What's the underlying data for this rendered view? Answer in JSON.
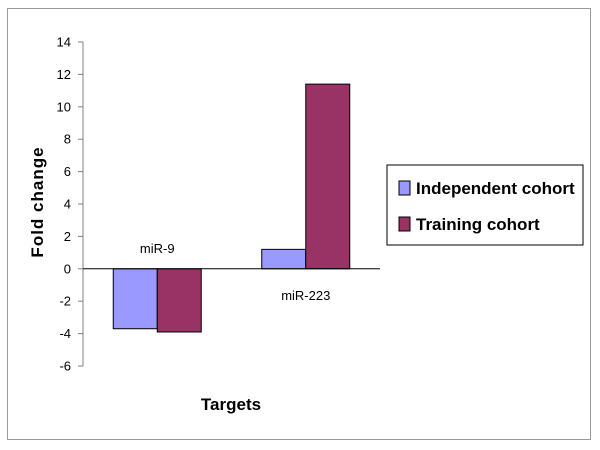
{
  "chart_data": {
    "type": "bar",
    "categories": [
      "miR-9",
      "miR-223"
    ],
    "series": [
      {
        "name": "Independent cohort",
        "values": [
          -3.7,
          1.2
        ],
        "color": "#9999ff"
      },
      {
        "name": "Training cohort",
        "values": [
          -3.9,
          11.4
        ],
        "color": "#993366"
      }
    ],
    "xlabel": "Targets",
    "ylabel": "Fold change",
    "ylim": [
      -6,
      14
    ],
    "yticks": [
      14,
      12,
      10,
      8,
      6,
      4,
      2,
      0,
      -2,
      -4,
      -6
    ],
    "ytick_labels": [
      "14",
      "12",
      "10",
      "8",
      "6",
      "4",
      "2",
      "0",
      "-2",
      "-4",
      "-6"
    ],
    "grid": false,
    "legend_position": "right"
  }
}
